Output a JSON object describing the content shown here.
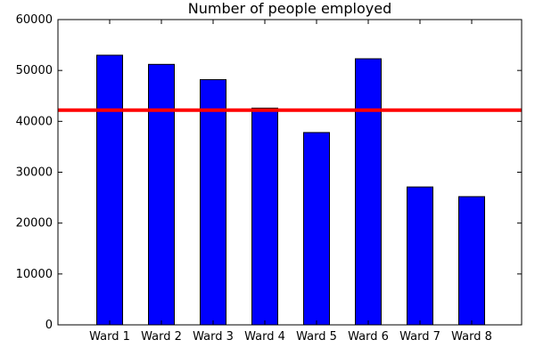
{
  "chart_data": {
    "type": "bar",
    "title": "Number of people employed",
    "xlabel": "",
    "ylabel": "",
    "categories": [
      "Ward 1",
      "Ward 2",
      "Ward 3",
      "Ward 4",
      "Ward 5",
      "Ward 6",
      "Ward 7",
      "Ward 8"
    ],
    "values": [
      53000,
      51200,
      48200,
      42600,
      37800,
      52300,
      27100,
      25200
    ],
    "reference_line": 42200,
    "ylim": [
      0,
      60000
    ],
    "yticks": [
      "0",
      "10000",
      "20000",
      "30000",
      "40000",
      "50000",
      "60000"
    ],
    "bar_color": "#0000ff",
    "reference_line_color": "#ff0000",
    "grid": false,
    "legend": "none"
  }
}
